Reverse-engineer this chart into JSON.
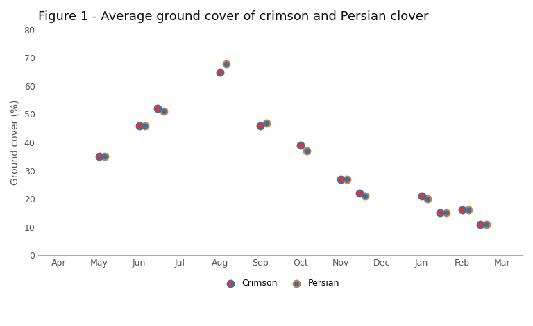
{
  "title": "Figure 1 - Average ground cover of crimson and Persian clover",
  "ylabel": "Ground cover (%)",
  "x_labels": [
    "Apr",
    "May",
    "Jun",
    "Jul",
    "Aug",
    "Sep",
    "Oct",
    "Nov",
    "Dec",
    "Jan",
    "Feb",
    "Mar"
  ],
  "ylim": [
    0,
    80
  ],
  "yticks": [
    0,
    10,
    20,
    30,
    40,
    50,
    60,
    70,
    80
  ],
  "crimson_x": [
    1.0,
    2.0,
    2.45,
    4.0,
    5.0,
    6.0,
    7.0,
    7.45,
    9.0,
    9.45,
    10.0,
    10.45
  ],
  "crimson_y": [
    35,
    46,
    52,
    65,
    46,
    39,
    27,
    22,
    21,
    15,
    16,
    11
  ],
  "persian_x": [
    1.15,
    2.15,
    2.6,
    4.15,
    5.15,
    6.15,
    7.15,
    7.6,
    9.15,
    9.6,
    10.15,
    10.6
  ],
  "persian_y": [
    35,
    46,
    51,
    68,
    47,
    37,
    27,
    21,
    20,
    15,
    16,
    11
  ],
  "crimson_color": "#e8312a",
  "crimson_edge": "#2e75b6",
  "persian_color": "#2e75b6",
  "persian_edge": "#e07d2a",
  "marker_size": 50,
  "edge_width": 1.5,
  "background_color": "#ffffff",
  "title_fontsize": 13,
  "axis_label_fontsize": 10,
  "tick_fontsize": 9,
  "legend_fontsize": 9,
  "spine_color": "#aaaaaa",
  "tick_color": "#555555"
}
